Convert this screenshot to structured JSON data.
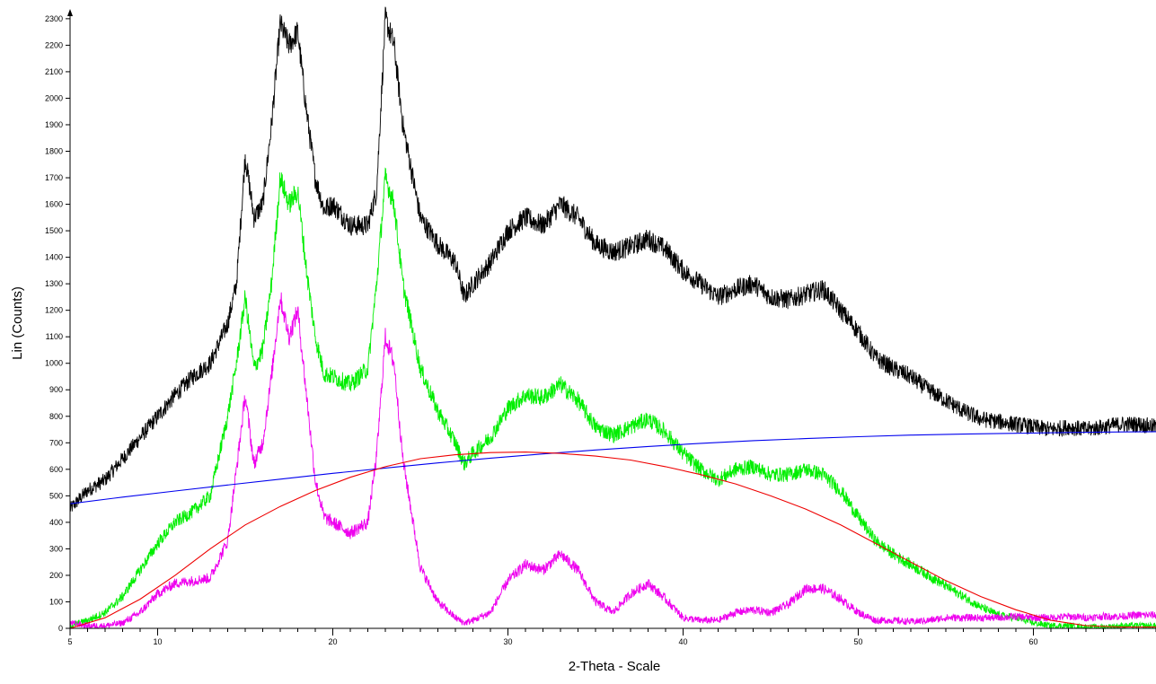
{
  "chart_data": {
    "type": "line",
    "title": "",
    "xlabel": "2-Theta - Scale",
    "ylabel": "Lin (Counts)",
    "xlim": [
      5,
      67
    ],
    "ylim": [
      0,
      2330
    ],
    "x_ticks": [
      5,
      10,
      20,
      30,
      40,
      50,
      60
    ],
    "y_ticks": [
      0,
      100,
      200,
      300,
      400,
      500,
      600,
      700,
      800,
      900,
      1000,
      1100,
      1200,
      1300,
      1400,
      1500,
      1600,
      1700,
      1800,
      1900,
      2000,
      2100,
      2200,
      2300
    ],
    "grid": false,
    "legend": "none",
    "series": [
      {
        "color": "#000000",
        "x": [
          5,
          6,
          7,
          8,
          9,
          10,
          11,
          12,
          13,
          14,
          14.5,
          15,
          15.5,
          16,
          16.5,
          17,
          17.5,
          18,
          18.5,
          19,
          19.5,
          20,
          21,
          22,
          22.5,
          23,
          23.5,
          24,
          25,
          26,
          27,
          27.5,
          28,
          29,
          30,
          31,
          32,
          33,
          34,
          35,
          36,
          37,
          38,
          39,
          40,
          41,
          42,
          43,
          44,
          45,
          46,
          47,
          48,
          49,
          50,
          51,
          52,
          53,
          54,
          55,
          56,
          57,
          58,
          59,
          60,
          61,
          62,
          63,
          64,
          65,
          66,
          67
        ],
        "y": [
          450,
          520,
          560,
          640,
          720,
          800,
          880,
          950,
          1000,
          1150,
          1300,
          1780,
          1550,
          1600,
          1900,
          2280,
          2200,
          2250,
          1950,
          1700,
          1580,
          1600,
          1520,
          1520,
          1650,
          2300,
          2200,
          1900,
          1550,
          1450,
          1380,
          1250,
          1300,
          1380,
          1500,
          1550,
          1520,
          1600,
          1550,
          1450,
          1420,
          1440,
          1470,
          1430,
          1350,
          1300,
          1250,
          1280,
          1300,
          1250,
          1240,
          1260,
          1280,
          1200,
          1120,
          1020,
          980,
          950,
          900,
          860,
          820,
          790,
          780,
          770,
          760,
          750,
          760,
          750,
          760,
          770,
          770,
          760
        ]
      },
      {
        "color": "#00ee00",
        "x": [
          5,
          6,
          7,
          8,
          9,
          10,
          11,
          12,
          13,
          14,
          14.5,
          15,
          15.5,
          16,
          16.5,
          17,
          17.5,
          18,
          18.5,
          19,
          19.5,
          20,
          21,
          22,
          22.5,
          23,
          23.5,
          24,
          25,
          26,
          27,
          27.5,
          28,
          29,
          30,
          31,
          32,
          33,
          34,
          35,
          36,
          37,
          38,
          39,
          40,
          41,
          42,
          43,
          44,
          45,
          46,
          47,
          48,
          49,
          50,
          51,
          52,
          53,
          54,
          55,
          56,
          57,
          58,
          59,
          60,
          61,
          62,
          63,
          64,
          65,
          66,
          67
        ],
        "y": [
          10,
          30,
          60,
          120,
          220,
          320,
          400,
          440,
          500,
          800,
          1000,
          1250,
          980,
          1050,
          1300,
          1700,
          1600,
          1650,
          1350,
          1100,
          960,
          950,
          920,
          980,
          1300,
          1700,
          1600,
          1300,
          980,
          820,
          700,
          620,
          660,
          720,
          830,
          880,
          870,
          920,
          860,
          760,
          730,
          760,
          790,
          740,
          660,
          600,
          560,
          600,
          610,
          580,
          580,
          600,
          580,
          520,
          420,
          330,
          280,
          240,
          200,
          160,
          120,
          80,
          50,
          40,
          20,
          10,
          10,
          5,
          5,
          10,
          10,
          10
        ]
      },
      {
        "color": "#ee00ee",
        "x": [
          5,
          6,
          7,
          8,
          9,
          10,
          11,
          12,
          13,
          14,
          14.5,
          15,
          15.5,
          16,
          16.5,
          17,
          17.5,
          18,
          18.5,
          19,
          19.5,
          20,
          21,
          22,
          22.5,
          23,
          23.5,
          24,
          25,
          26,
          27,
          27.5,
          28,
          29,
          30,
          31,
          32,
          33,
          34,
          35,
          36,
          37,
          38,
          39,
          40,
          41,
          42,
          43,
          44,
          45,
          46,
          47,
          48,
          49,
          50,
          51,
          52,
          53,
          54,
          55,
          56,
          57,
          58,
          59,
          60,
          61,
          62,
          63,
          64,
          65,
          66,
          67
        ],
        "y": [
          20,
          10,
          10,
          20,
          60,
          130,
          170,
          180,
          190,
          330,
          600,
          880,
          620,
          700,
          950,
          1250,
          1100,
          1200,
          880,
          560,
          420,
          400,
          360,
          400,
          650,
          1100,
          1000,
          640,
          230,
          100,
          40,
          20,
          30,
          60,
          180,
          240,
          220,
          280,
          220,
          100,
          60,
          130,
          170,
          110,
          40,
          30,
          30,
          60,
          70,
          60,
          90,
          150,
          150,
          110,
          60,
          30,
          30,
          25,
          30,
          40,
          40,
          40,
          40,
          45,
          40,
          40,
          45,
          40,
          45,
          45,
          50,
          50
        ]
      },
      {
        "color": "#0000ee",
        "x": [
          5,
          8,
          11,
          14,
          17,
          20,
          23,
          26,
          29,
          32,
          35,
          38,
          41,
          44,
          47,
          50,
          53,
          56,
          59,
          62,
          65,
          67
        ],
        "y": [
          470,
          495,
          518,
          541,
          563,
          585,
          605,
          624,
          642,
          658,
          673,
          686,
          698,
          708,
          716,
          723,
          729,
          733,
          736,
          739,
          741,
          742
        ]
      },
      {
        "color": "#ee0000",
        "x": [
          5,
          7,
          9,
          11,
          13,
          15,
          17,
          19,
          21,
          23,
          25,
          27,
          29,
          31,
          33,
          35,
          37,
          39,
          41,
          43,
          45,
          47,
          49,
          51,
          53,
          55,
          57,
          59,
          61,
          63,
          65,
          67
        ],
        "y": [
          0,
          40,
          110,
          200,
          300,
          390,
          460,
          520,
          570,
          610,
          640,
          655,
          663,
          665,
          660,
          650,
          635,
          610,
          580,
          545,
          500,
          450,
          390,
          320,
          250,
          180,
          120,
          70,
          30,
          10,
          5,
          5
        ]
      }
    ]
  }
}
